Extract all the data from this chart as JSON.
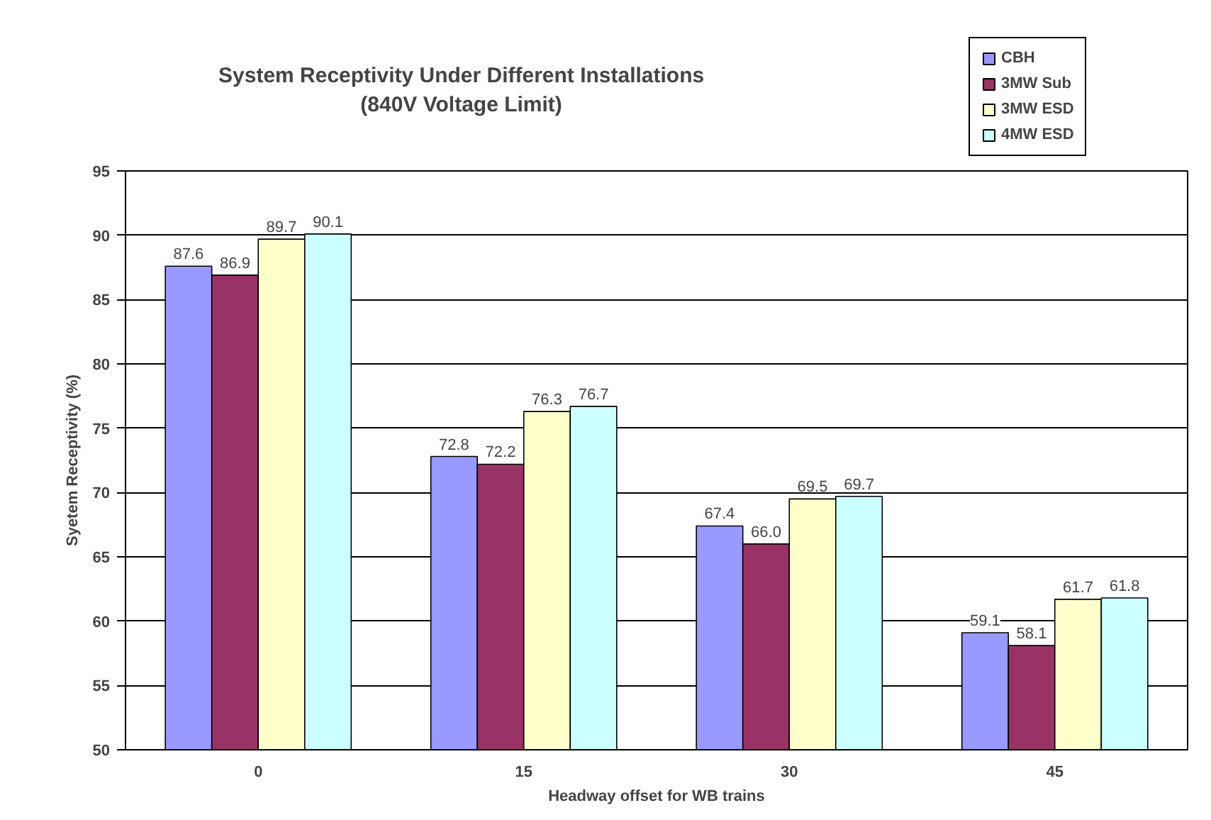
{
  "chart_data": {
    "type": "bar",
    "title": "System Receptivity Under Different Installations\n(840V Voltage Limit)",
    "xlabel": "Headway offset for WB trains",
    "ylabel": "Syetem Receptivity (%)",
    "categories": [
      "0",
      "15",
      "30",
      "45"
    ],
    "series": [
      {
        "name": "CBH",
        "color": "#9999ff",
        "values": [
          87.6,
          72.8,
          67.4,
          59.1
        ],
        "value_labels": [
          "87.6",
          "72.8",
          "67.4",
          "59.1"
        ]
      },
      {
        "name": "3MW Sub",
        "color": "#993366",
        "values": [
          86.9,
          72.2,
          66.0,
          58.1
        ],
        "value_labels": [
          "86.9",
          "72.2",
          "66.0",
          "58.1"
        ]
      },
      {
        "name": "3MW ESD",
        "color": "#ffffcc",
        "values": [
          89.7,
          76.3,
          69.5,
          61.7
        ],
        "value_labels": [
          "89.7",
          "76.3",
          "69.5",
          "61.7"
        ]
      },
      {
        "name": "4MW ESD",
        "color": "#ccffff",
        "values": [
          90.1,
          76.7,
          69.7,
          61.8
        ],
        "value_labels": [
          "90.1",
          "76.7",
          "69.7",
          "61.8"
        ]
      }
    ],
    "ylim": [
      50,
      95
    ],
    "yticks": [
      50,
      55,
      60,
      65,
      70,
      75,
      80,
      85,
      90,
      95
    ],
    "grid": "y",
    "legend": "top right"
  }
}
